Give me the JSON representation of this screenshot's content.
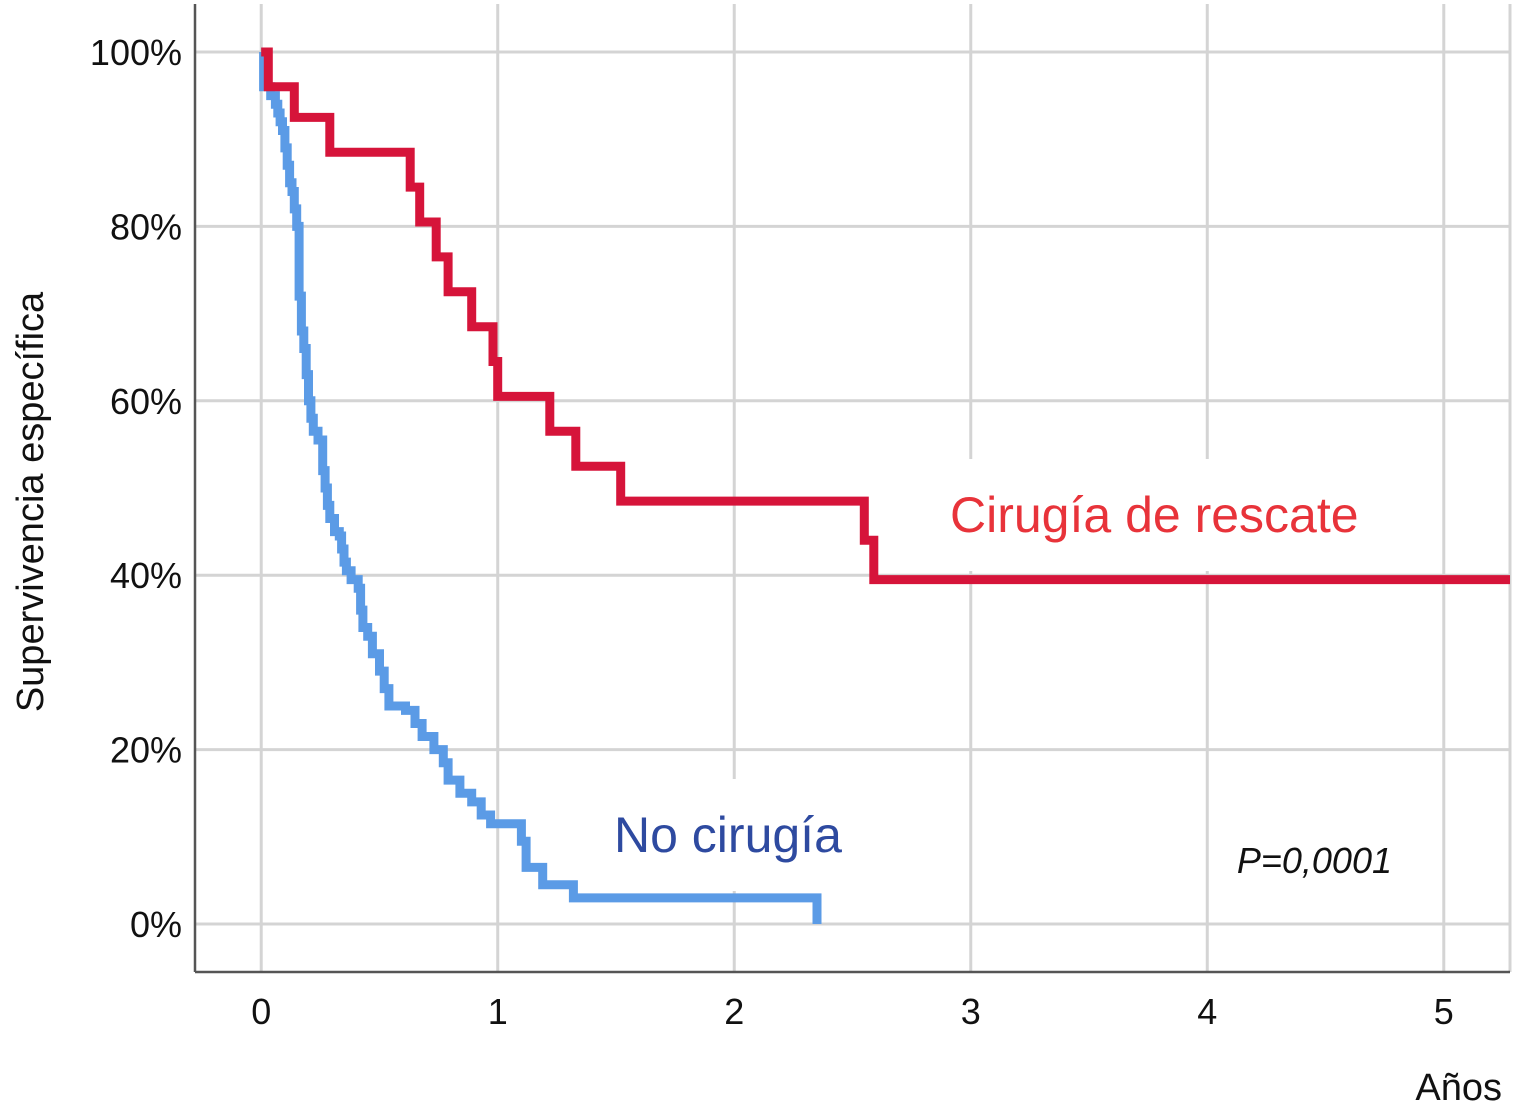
{
  "chart_data": {
    "type": "line",
    "step": true,
    "title": "",
    "xlabel": "Años",
    "ylabel": "Supervivencia específica",
    "xlim": [
      -0.28,
      5.28
    ],
    "ylim": [
      -0.055,
      1.055
    ],
    "x_ticks": [
      0,
      1,
      2,
      3,
      4,
      5
    ],
    "x_tick_labels": [
      "0",
      "1",
      "2",
      "3",
      "4",
      "5"
    ],
    "y_ticks": [
      0,
      0.2,
      0.4,
      0.6,
      0.8,
      1.0
    ],
    "y_tick_labels": [
      "0%",
      "20%",
      "40%",
      "60%",
      "80%",
      "100%"
    ],
    "grid": true,
    "annotation": "P=0,0001",
    "series": [
      {
        "name": "Cirugía de rescate",
        "color": "#d6143a",
        "label_color": "#e8333a",
        "points": [
          [
            0,
            1.0
          ],
          [
            0.03,
            0.96
          ],
          [
            0.14,
            0.925
          ],
          [
            0.29,
            0.885
          ],
          [
            0.63,
            0.845
          ],
          [
            0.67,
            0.805
          ],
          [
            0.74,
            0.765
          ],
          [
            0.79,
            0.725
          ],
          [
            0.89,
            0.685
          ],
          [
            0.98,
            0.645
          ],
          [
            1.0,
            0.605
          ],
          [
            1.22,
            0.565
          ],
          [
            1.33,
            0.525
          ],
          [
            1.52,
            0.485
          ],
          [
            2.55,
            0.44
          ],
          [
            2.59,
            0.395
          ],
          [
            5.28,
            0.395
          ]
        ]
      },
      {
        "name": "No cirugía",
        "color": "#5b9be6",
        "label_color": "#2e4aa0",
        "points": [
          [
            0,
            1.0
          ],
          [
            0.01,
            0.96
          ],
          [
            0.04,
            0.95
          ],
          [
            0.06,
            0.94
          ],
          [
            0.07,
            0.93
          ],
          [
            0.08,
            0.92
          ],
          [
            0.09,
            0.91
          ],
          [
            0.1,
            0.89
          ],
          [
            0.11,
            0.87
          ],
          [
            0.12,
            0.85
          ],
          [
            0.13,
            0.84
          ],
          [
            0.14,
            0.82
          ],
          [
            0.15,
            0.8
          ],
          [
            0.16,
            0.78
          ],
          [
            0.16,
            0.76
          ],
          [
            0.16,
            0.74
          ],
          [
            0.16,
            0.72
          ],
          [
            0.17,
            0.7
          ],
          [
            0.17,
            0.68
          ],
          [
            0.18,
            0.66
          ],
          [
            0.19,
            0.645
          ],
          [
            0.19,
            0.63
          ],
          [
            0.2,
            0.615
          ],
          [
            0.2,
            0.6
          ],
          [
            0.21,
            0.58
          ],
          [
            0.22,
            0.565
          ],
          [
            0.24,
            0.555
          ],
          [
            0.26,
            0.52
          ],
          [
            0.27,
            0.5
          ],
          [
            0.28,
            0.48
          ],
          [
            0.29,
            0.465
          ],
          [
            0.31,
            0.45
          ],
          [
            0.33,
            0.445
          ],
          [
            0.34,
            0.43
          ],
          [
            0.35,
            0.415
          ],
          [
            0.36,
            0.405
          ],
          [
            0.38,
            0.395
          ],
          [
            0.41,
            0.385
          ],
          [
            0.42,
            0.36
          ],
          [
            0.43,
            0.34
          ],
          [
            0.45,
            0.33
          ],
          [
            0.47,
            0.31
          ],
          [
            0.5,
            0.29
          ],
          [
            0.52,
            0.27
          ],
          [
            0.54,
            0.25
          ],
          [
            0.61,
            0.245
          ],
          [
            0.65,
            0.23
          ],
          [
            0.68,
            0.215
          ],
          [
            0.73,
            0.2
          ],
          [
            0.77,
            0.185
          ],
          [
            0.79,
            0.165
          ],
          [
            0.84,
            0.15
          ],
          [
            0.89,
            0.14
          ],
          [
            0.93,
            0.125
          ],
          [
            0.97,
            0.115
          ],
          [
            1.1,
            0.095
          ],
          [
            1.12,
            0.065
          ],
          [
            1.19,
            0.045
          ],
          [
            1.32,
            0.03
          ],
          [
            1.44,
            0.03
          ],
          [
            2.35,
            0.0
          ]
        ]
      }
    ]
  },
  "labels": {
    "series_red": "Cirugía de rescate",
    "series_blue": "No cirugía",
    "p_value": "P=0,0001",
    "x_axis_title": "Años",
    "y_axis_title": "Supervivencia específica"
  }
}
